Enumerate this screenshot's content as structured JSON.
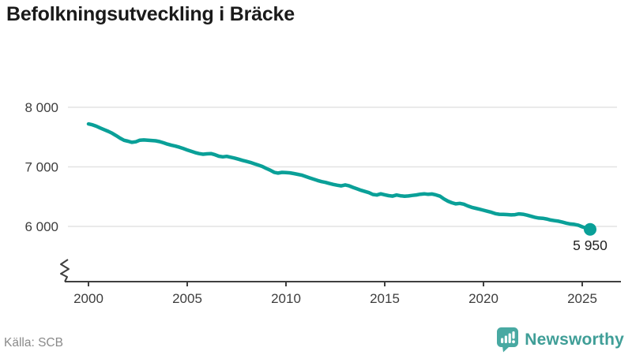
{
  "title": "Befolkningsutveckling i Bräcke",
  "source": "Källa: SCB",
  "logo": {
    "text": "Newsworthy",
    "icon": "bar-chart-speech-bubble-icon",
    "color": "#48a9a2"
  },
  "colors": {
    "line": "#0aa098",
    "end_dot": "#0aa098",
    "grid": "#e3e3e3",
    "axis": "#3f3f3f",
    "title_text": "#1a1a1a",
    "tick_text": "#3d3d3d",
    "source_text": "#8a8a8a",
    "background": "#ffffff"
  },
  "chart_data": {
    "type": "line",
    "title": "Befolkningsutveckling i Bräcke",
    "xlabel": "",
    "ylabel": "",
    "grid": "horizontal",
    "legend": "none",
    "y_axis_break": true,
    "xlim": [
      1998.8,
      2026.9
    ],
    "ylim": [
      5650,
      8350
    ],
    "x_ticks": {
      "values": [
        2000,
        2005,
        2010,
        2015,
        2020,
        2025
      ],
      "labels": [
        "2000",
        "2005",
        "2010",
        "2015",
        "2020",
        "2025"
      ]
    },
    "y_ticks": {
      "values": [
        6000,
        7000,
        8000
      ],
      "labels": [
        "6 000",
        "7 000",
        "8 000"
      ]
    },
    "end_point": {
      "x": 2025.4,
      "y": 5950,
      "label": "5 950"
    },
    "series": [
      {
        "name": "Befolkning",
        "points": [
          [
            2000.0,
            7720
          ],
          [
            2000.2,
            7706
          ],
          [
            2000.4,
            7682
          ],
          [
            2000.6,
            7652
          ],
          [
            2000.8,
            7624
          ],
          [
            2001.0,
            7596
          ],
          [
            2001.2,
            7564
          ],
          [
            2001.4,
            7524
          ],
          [
            2001.6,
            7482
          ],
          [
            2001.8,
            7446
          ],
          [
            2002.0,
            7430
          ],
          [
            2002.2,
            7412
          ],
          [
            2002.4,
            7421
          ],
          [
            2002.6,
            7448
          ],
          [
            2002.8,
            7452
          ],
          [
            2003.0,
            7447
          ],
          [
            2003.2,
            7443
          ],
          [
            2003.4,
            7437
          ],
          [
            2003.6,
            7424
          ],
          [
            2003.8,
            7404
          ],
          [
            2004.0,
            7381
          ],
          [
            2004.2,
            7363
          ],
          [
            2004.4,
            7348
          ],
          [
            2004.6,
            7330
          ],
          [
            2004.8,
            7307
          ],
          [
            2005.0,
            7283
          ],
          [
            2005.2,
            7261
          ],
          [
            2005.4,
            7240
          ],
          [
            2005.6,
            7223
          ],
          [
            2005.8,
            7212
          ],
          [
            2006.0,
            7218
          ],
          [
            2006.2,
            7223
          ],
          [
            2006.4,
            7204
          ],
          [
            2006.6,
            7179
          ],
          [
            2006.8,
            7168
          ],
          [
            2007.0,
            7176
          ],
          [
            2007.2,
            7162
          ],
          [
            2007.4,
            7147
          ],
          [
            2007.6,
            7128
          ],
          [
            2007.8,
            7109
          ],
          [
            2008.0,
            7091
          ],
          [
            2008.2,
            7074
          ],
          [
            2008.4,
            7051
          ],
          [
            2008.6,
            7029
          ],
          [
            2008.8,
            7007
          ],
          [
            2009.0,
            6974
          ],
          [
            2009.2,
            6944
          ],
          [
            2009.4,
            6909
          ],
          [
            2009.6,
            6896
          ],
          [
            2009.8,
            6907
          ],
          [
            2010.0,
            6904
          ],
          [
            2010.2,
            6899
          ],
          [
            2010.4,
            6888
          ],
          [
            2010.6,
            6874
          ],
          [
            2010.8,
            6861
          ],
          [
            2011.0,
            6837
          ],
          [
            2011.2,
            6814
          ],
          [
            2011.4,
            6794
          ],
          [
            2011.6,
            6771
          ],
          [
            2011.8,
            6752
          ],
          [
            2012.0,
            6739
          ],
          [
            2012.2,
            6721
          ],
          [
            2012.4,
            6704
          ],
          [
            2012.6,
            6691
          ],
          [
            2012.8,
            6681
          ],
          [
            2013.0,
            6697
          ],
          [
            2013.2,
            6681
          ],
          [
            2013.4,
            6654
          ],
          [
            2013.6,
            6631
          ],
          [
            2013.8,
            6607
          ],
          [
            2014.0,
            6587
          ],
          [
            2014.2,
            6567
          ],
          [
            2014.4,
            6537
          ],
          [
            2014.6,
            6527
          ],
          [
            2014.8,
            6547
          ],
          [
            2015.0,
            6531
          ],
          [
            2015.2,
            6517
          ],
          [
            2015.4,
            6509
          ],
          [
            2015.6,
            6527
          ],
          [
            2015.8,
            6514
          ],
          [
            2016.0,
            6507
          ],
          [
            2016.2,
            6511
          ],
          [
            2016.4,
            6521
          ],
          [
            2016.6,
            6529
          ],
          [
            2016.8,
            6541
          ],
          [
            2017.0,
            6547
          ],
          [
            2017.2,
            6539
          ],
          [
            2017.4,
            6544
          ],
          [
            2017.6,
            6529
          ],
          [
            2017.8,
            6507
          ],
          [
            2018.0,
            6461
          ],
          [
            2018.2,
            6424
          ],
          [
            2018.4,
            6397
          ],
          [
            2018.6,
            6379
          ],
          [
            2018.8,
            6387
          ],
          [
            2019.0,
            6374
          ],
          [
            2019.2,
            6344
          ],
          [
            2019.4,
            6321
          ],
          [
            2019.6,
            6304
          ],
          [
            2019.8,
            6289
          ],
          [
            2020.0,
            6271
          ],
          [
            2020.2,
            6254
          ],
          [
            2020.4,
            6237
          ],
          [
            2020.6,
            6214
          ],
          [
            2020.8,
            6204
          ],
          [
            2021.0,
            6201
          ],
          [
            2021.2,
            6199
          ],
          [
            2021.4,
            6194
          ],
          [
            2021.6,
            6197
          ],
          [
            2021.8,
            6211
          ],
          [
            2022.0,
            6204
          ],
          [
            2022.2,
            6189
          ],
          [
            2022.4,
            6171
          ],
          [
            2022.6,
            6154
          ],
          [
            2022.8,
            6141
          ],
          [
            2023.0,
            6137
          ],
          [
            2023.2,
            6124
          ],
          [
            2023.4,
            6107
          ],
          [
            2023.6,
            6097
          ],
          [
            2023.8,
            6087
          ],
          [
            2024.0,
            6071
          ],
          [
            2024.2,
            6054
          ],
          [
            2024.4,
            6041
          ],
          [
            2024.6,
            6034
          ],
          [
            2024.8,
            6021
          ],
          [
            2025.0,
            5994
          ],
          [
            2025.2,
            5971
          ],
          [
            2025.4,
            5950
          ]
        ]
      }
    ]
  }
}
